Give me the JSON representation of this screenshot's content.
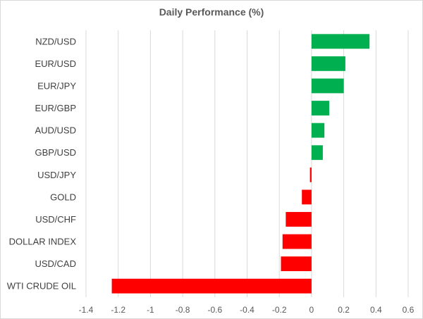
{
  "chart_data": {
    "type": "bar",
    "orientation": "horizontal",
    "title": "Daily Performance (%)",
    "xlabel": "",
    "ylabel": "",
    "xlim": [
      -1.4,
      0.6
    ],
    "xticks": [
      -1.4,
      -1.2,
      -1,
      -0.8,
      -0.6,
      -0.4,
      -0.2,
      0,
      0.2,
      0.4,
      0.6
    ],
    "xtick_labels": [
      "-1.4",
      "-1.2",
      "-1",
      "-0.8",
      "-0.6",
      "-0.4",
      "-0.2",
      "0",
      "0.2",
      "0.4",
      "0.6"
    ],
    "grid": "vertical",
    "categories": [
      "NZD/USD",
      "EUR/USD",
      "EUR/JPY",
      "EUR/GBP",
      "AUD/USD",
      "GBP/USD",
      "USD/JPY",
      "GOLD",
      "USD/CHF",
      "DOLLAR INDEX",
      "USD/CAD",
      "WTI CRUDE OIL"
    ],
    "values": [
      0.36,
      0.21,
      0.2,
      0.11,
      0.08,
      0.07,
      -0.01,
      -0.06,
      -0.16,
      -0.18,
      -0.19,
      -1.24
    ],
    "positive_color": "#00b050",
    "negative_color": "#ff0000"
  }
}
